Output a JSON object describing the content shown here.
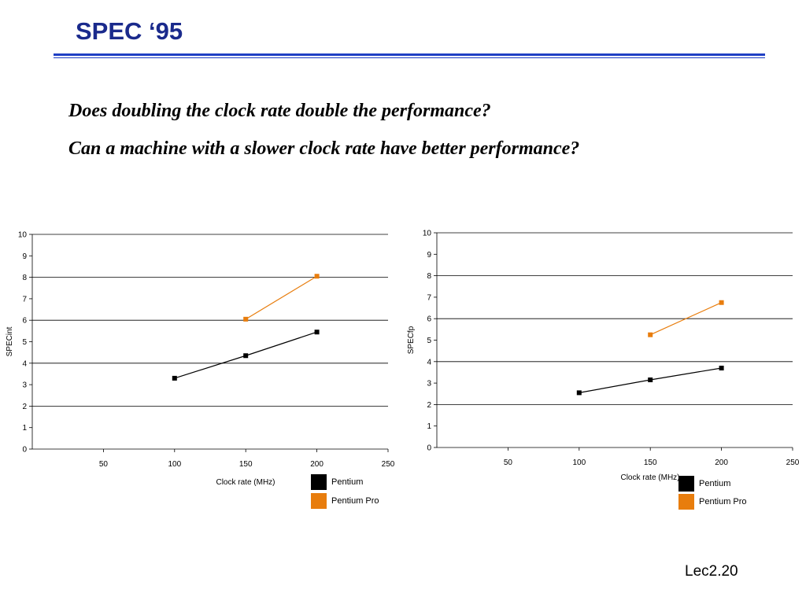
{
  "title": "SPEC ‘95",
  "questions": [
    "Does doubling the clock rate double the performance?",
    "Can a machine with a slower clock rate have better performance?"
  ],
  "page_number": "Lec2.20",
  "colors": {
    "title": "#1a2a8c",
    "rule": "#1f3fc4",
    "pentium": "#000000",
    "pentium_pro": "#e87d0d"
  },
  "chart_data": [
    {
      "type": "line",
      "ylabel": "SPECint",
      "xlabel": "Clock rate (MHz)",
      "xlim": [
        0,
        250
      ],
      "ylim": [
        0,
        10
      ],
      "x_ticks": [
        50,
        100,
        150,
        200,
        250
      ],
      "y_ticks": [
        0,
        1,
        2,
        3,
        4,
        5,
        6,
        7,
        8,
        9,
        10
      ],
      "grid": "horizontal at y = 2, 4, 6, 8, 10",
      "legend_position": "bottom-right",
      "series": [
        {
          "name": "Pentium",
          "color": "#000000",
          "x": [
            100,
            150,
            200
          ],
          "y": [
            3.3,
            4.35,
            5.45
          ]
        },
        {
          "name": "Pentium Pro",
          "color": "#e87d0d",
          "x": [
            150,
            200
          ],
          "y": [
            6.05,
            8.05
          ]
        }
      ]
    },
    {
      "type": "line",
      "ylabel": "SPECfp",
      "xlabel": "Clock rate (MHz)",
      "xlim": [
        0,
        250
      ],
      "ylim": [
        0,
        10
      ],
      "x_ticks": [
        50,
        100,
        150,
        200,
        250
      ],
      "y_ticks": [
        0,
        1,
        2,
        3,
        4,
        5,
        6,
        7,
        8,
        9,
        10
      ],
      "grid": "horizontal at y = 2, 4, 6, 8, 10",
      "legend_position": "bottom-right",
      "series": [
        {
          "name": "Pentium",
          "color": "#000000",
          "x": [
            100,
            150,
            200
          ],
          "y": [
            2.55,
            3.15,
            3.7
          ]
        },
        {
          "name": "Pentium Pro",
          "color": "#e87d0d",
          "x": [
            150,
            200
          ],
          "y": [
            5.25,
            6.75
          ]
        }
      ]
    }
  ]
}
